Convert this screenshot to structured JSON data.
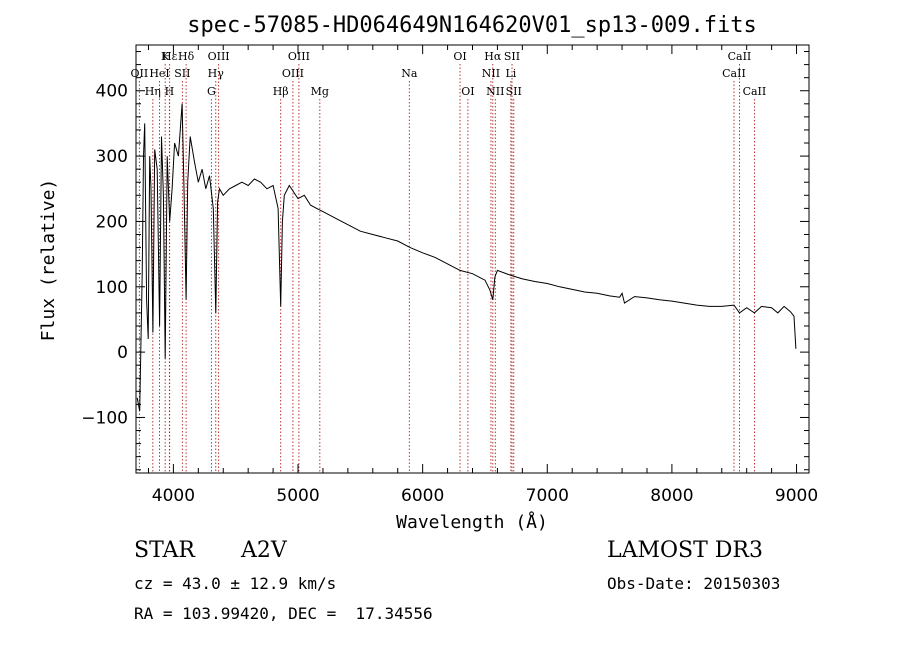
{
  "chart_data": {
    "type": "line",
    "title": "spec-57085-HD064649N164620V01_sp13-009.fits",
    "xlabel": "Wavelength (Å)",
    "ylabel": "Flux (relative)",
    "xlim": [
      3700,
      9100
    ],
    "ylim": [
      -185,
      470
    ],
    "xticks": [
      4000,
      5000,
      6000,
      7000,
      8000,
      9000
    ],
    "yticks": [
      -100,
      0,
      100,
      200,
      300,
      400
    ],
    "series": [
      {
        "name": "spectrum",
        "x": [
          3710,
          3730,
          3750,
          3760,
          3770,
          3785,
          3798,
          3810,
          3820,
          3836,
          3850,
          3870,
          3889,
          3905,
          3920,
          3934,
          3950,
          3970,
          3990,
          4010,
          4040,
          4070,
          4085,
          4102,
          4115,
          4135,
          4170,
          4200,
          4230,
          4260,
          4290,
          4320,
          4340,
          4355,
          4370,
          4400,
          4450,
          4500,
          4550,
          4600,
          4650,
          4700,
          4750,
          4800,
          4840,
          4861,
          4875,
          4890,
          4930,
          5000,
          5050,
          5100,
          5150,
          5200,
          5300,
          5400,
          5500,
          5600,
          5700,
          5800,
          5900,
          6000,
          6100,
          6200,
          6300,
          6400,
          6500,
          6540,
          6563,
          6580,
          6600,
          6700,
          6800,
          6900,
          7000,
          7100,
          7200,
          7300,
          7400,
          7500,
          7580,
          7600,
          7620,
          7700,
          7800,
          7900,
          8000,
          8100,
          8200,
          8300,
          8400,
          8498,
          8542,
          8600,
          8662,
          8720,
          8800,
          8850,
          8900,
          8950,
          8980,
          8995
        ],
        "y": [
          -70,
          -90,
          120,
          300,
          350,
          80,
          20,
          300,
          250,
          30,
          310,
          280,
          40,
          330,
          240,
          -10,
          300,
          200,
          250,
          320,
          300,
          380,
          250,
          80,
          260,
          330,
          290,
          260,
          280,
          250,
          270,
          220,
          60,
          230,
          250,
          240,
          250,
          255,
          260,
          255,
          265,
          260,
          250,
          255,
          220,
          70,
          200,
          240,
          255,
          235,
          240,
          225,
          220,
          215,
          205,
          195,
          185,
          180,
          175,
          170,
          160,
          152,
          145,
          135,
          125,
          120,
          110,
          95,
          80,
          115,
          125,
          118,
          112,
          108,
          105,
          100,
          96,
          92,
          90,
          86,
          84,
          90,
          75,
          85,
          83,
          80,
          78,
          75,
          72,
          70,
          70,
          72,
          60,
          68,
          60,
          70,
          68,
          60,
          70,
          62,
          55,
          5
        ]
      }
    ],
    "line_markers": [
      {
        "label": "Hε",
        "x": 3970,
        "row": 0
      },
      {
        "label": "K",
        "x": 3934,
        "row": 0
      },
      {
        "label": "Hδ",
        "x": 4102,
        "row": 0
      },
      {
        "label": "OIII",
        "x": 4363,
        "row": 0
      },
      {
        "label": "OIII",
        "x": 5007,
        "row": 0
      },
      {
        "label": "OI",
        "x": 6300,
        "row": 0
      },
      {
        "label": "Hα",
        "x": 6563,
        "row": 0
      },
      {
        "label": "SII",
        "x": 6717,
        "row": 0
      },
      {
        "label": "CaII",
        "x": 8542,
        "row": 0
      },
      {
        "label": "OII",
        "x": 3727,
        "row": 1
      },
      {
        "label": "HeI",
        "x": 3889,
        "row": 1
      },
      {
        "label": "SII",
        "x": 4072,
        "row": 1
      },
      {
        "label": "Hγ",
        "x": 4340,
        "row": 1
      },
      {
        "label": "OIII",
        "x": 4959,
        "row": 1
      },
      {
        "label": "Na",
        "x": 5893,
        "row": 1
      },
      {
        "label": "NII",
        "x": 6548,
        "row": 1
      },
      {
        "label": "Li",
        "x": 6708,
        "row": 1
      },
      {
        "label": "CaII",
        "x": 8498,
        "row": 1
      },
      {
        "label": "Hη",
        "x": 3835,
        "row": 2
      },
      {
        "label": "H",
        "x": 3968,
        "row": 2
      },
      {
        "label": "G",
        "x": 4305,
        "row": 2
      },
      {
        "label": "Hβ",
        "x": 4861,
        "row": 2
      },
      {
        "label": "Mg",
        "x": 5175,
        "row": 2
      },
      {
        "label": "OI",
        "x": 6363,
        "row": 2
      },
      {
        "label": "NII",
        "x": 6583,
        "row": 2
      },
      {
        "label": "SII",
        "x": 6731,
        "row": 2
      },
      {
        "label": "CaII",
        "x": 8662,
        "row": 2
      }
    ],
    "marker_color": "#b22222",
    "line_color": "#000000"
  },
  "info": {
    "object_class": "STAR",
    "subclass": "A2V",
    "survey": "LAMOST DR3",
    "redshift": "cz = 43.0 ± 12.9 km/s",
    "obs_date": "Obs-Date: 20150303",
    "coords": "RA = 103.99420, DEC =  17.34556"
  }
}
